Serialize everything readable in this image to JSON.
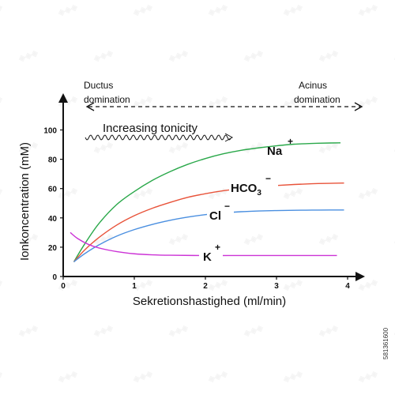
{
  "chart_data": {
    "type": "line",
    "xlabel": "Sekretionshastighed (ml/min)",
    "ylabel": "Ionkoncentration (mM)",
    "xlim": [
      0,
      4.2
    ],
    "ylim": [
      0,
      110
    ],
    "x_ticks": [
      0,
      1,
      2,
      3,
      4
    ],
    "y_ticks": [
      0,
      20,
      40,
      60,
      80,
      100
    ],
    "grid": false,
    "x_tick_labels": [
      "0",
      "1",
      "2",
      "3",
      "4"
    ],
    "y_tick_labels": [
      "0",
      "20",
      "40",
      "60",
      "80",
      "100"
    ],
    "series": [
      {
        "label": "Na",
        "charge": "+",
        "color": "#2aa84a",
        "x": [
          0.15,
          0.3,
          0.5,
          0.75,
          1.0,
          1.25,
          1.5,
          1.75,
          2.0,
          2.25,
          2.5,
          2.75,
          3.0,
          3.25,
          3.5,
          3.75,
          3.9
        ],
        "y": [
          10,
          22,
          36,
          49,
          58,
          65.5,
          71.5,
          76.5,
          80.5,
          83.7,
          86.1,
          87.8,
          89.2,
          90.3,
          90.8,
          91.1,
          91.2
        ]
      },
      {
        "label": "HCO3",
        "sub": "3",
        "charge": "−",
        "color": "#e8533a",
        "x": [
          0.15,
          0.3,
          0.5,
          0.75,
          1.0,
          1.25,
          1.5,
          1.75,
          2.0,
          2.25,
          2.5,
          2.75,
          3.0,
          3.25,
          3.5,
          3.75,
          3.95
        ],
        "y": [
          10,
          18,
          26.5,
          35,
          41.5,
          46.5,
          50.5,
          54,
          56.5,
          58.5,
          60,
          61.2,
          62.1,
          62.8,
          63.3,
          63.6,
          63.8
        ]
      },
      {
        "label": "Cl",
        "charge": "−",
        "color": "#4a8fe0",
        "x": [
          0.15,
          0.3,
          0.5,
          0.75,
          1.0,
          1.25,
          1.5,
          1.75,
          2.0,
          2.25,
          2.5,
          2.75,
          3.0,
          3.25,
          3.5,
          3.75,
          3.95
        ],
        "y": [
          10,
          15.5,
          21.5,
          27.5,
          32,
          35.5,
          38.3,
          40.5,
          42.2,
          43.4,
          44.2,
          44.7,
          45,
          45.2,
          45.3,
          45.4,
          45.4
        ]
      },
      {
        "label": "K",
        "charge": "+",
        "color": "#cc33d6",
        "x": [
          0.1,
          0.2,
          0.35,
          0.5,
          0.75,
          1.0,
          1.25,
          1.5,
          2.0,
          2.5,
          3.0,
          3.5,
          3.85
        ],
        "y": [
          30,
          26,
          22,
          19.5,
          17,
          15.5,
          14.8,
          14.5,
          14.3,
          14.3,
          14.3,
          14.3,
          14.3
        ]
      }
    ],
    "annotations": {
      "ductus": "Ductus",
      "ductus2": "domination",
      "acinus": "Acinus",
      "acinus2": "domination",
      "tonicity": "Increasing tonicity"
    }
  },
  "stock_id": "581361600"
}
